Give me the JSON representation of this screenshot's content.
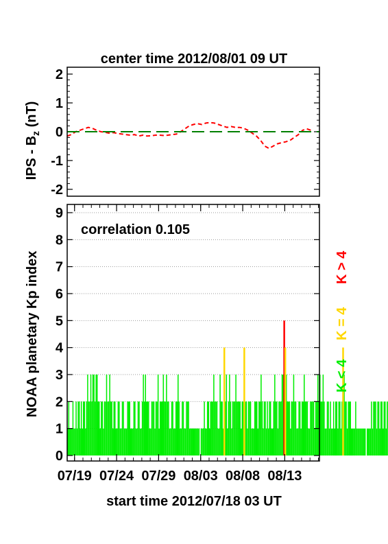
{
  "title": "center time 2012/08/01 09 UT",
  "xlabel": "start time 2012/07/18 03 UT",
  "chart_data": [
    {
      "type": "line",
      "ylabel_main": "IPS - B",
      "ylabel_sub": "z",
      "ylabel_unit": " (nT)",
      "ylim": [
        -2,
        2
      ],
      "yticks": [
        "2",
        "1",
        "0",
        "-1",
        "-2"
      ],
      "xlim_days": [
        0,
        30
      ],
      "grid": false,
      "series": [
        {
          "color": "#ff0000",
          "style": "dashed",
          "x_days": [
            0,
            0.5,
            1,
            1.5,
            2,
            2.5,
            3,
            3.5,
            4,
            4.5,
            5,
            5.5,
            6,
            6.5,
            7,
            7.5,
            8,
            8.5,
            9,
            9.5,
            10,
            10.5,
            11,
            11.5,
            12,
            12.5,
            13,
            13.5,
            14,
            14.5,
            15,
            15.5,
            16,
            16.5,
            17,
            17.5,
            18,
            18.5,
            19,
            19.5,
            20,
            20.5,
            21,
            21.5,
            22,
            22.5,
            23,
            23.5,
            24,
            24.5,
            25,
            25.5,
            26,
            26.5,
            27,
            27.5,
            28,
            28.5,
            29
          ],
          "values": [
            -0.15,
            -0.1,
            0.0,
            0.05,
            0.1,
            0.15,
            0.12,
            0.05,
            0.0,
            -0.02,
            -0.05,
            -0.03,
            -0.06,
            -0.08,
            -0.1,
            -0.12,
            -0.1,
            -0.15,
            -0.12,
            -0.15,
            -0.14,
            -0.12,
            -0.12,
            -0.13,
            -0.12,
            -0.1,
            -0.08,
            0.0,
            0.1,
            0.2,
            0.25,
            0.28,
            0.25,
            0.3,
            0.32,
            0.3,
            0.25,
            0.2,
            0.15,
            0.18,
            0.15,
            0.15,
            0.12,
            0.05,
            -0.05,
            -0.15,
            -0.3,
            -0.5,
            -0.58,
            -0.5,
            -0.42,
            -0.38,
            -0.35,
            -0.3,
            -0.2,
            -0.1,
            0.05,
            0.1,
            0.05
          ]
        },
        {
          "color": "#008000",
          "style": "long-dash",
          "x_days": [
            0,
            30
          ],
          "values": [
            0,
            0
          ]
        }
      ]
    },
    {
      "type": "bar",
      "annotation": "correlation 0.105",
      "ylabel": "NOAA planetary Kp index",
      "ylim": [
        0,
        9
      ],
      "yticks": [
        "0",
        "1",
        "2",
        "3",
        "4",
        "5",
        "6",
        "7",
        "8",
        "9"
      ],
      "grid": true,
      "xlim_days": [
        0,
        30
      ],
      "xtick_labels": [
        "07/19",
        "07/24",
        "07/29",
        "08/03",
        "08/08",
        "08/13"
      ],
      "xtick_days": [
        0.875,
        5.875,
        10.875,
        15.875,
        20.875,
        25.875
      ],
      "legend": [
        {
          "label": "K < 4",
          "color": "#00ee00"
        },
        {
          "label": "K = 4",
          "color": "#ffd700"
        },
        {
          "label": "K > 4",
          "color": "#ff0000"
        }
      ],
      "threshold_colors": {
        "low": "#00ee00",
        "equal": "#ffd700",
        "high": "#ff0000"
      },
      "interval_days": 0.125,
      "values": [
        1,
        2,
        1,
        1,
        1,
        2,
        1,
        1,
        2,
        1,
        2,
        2,
        1,
        2,
        1,
        2,
        2,
        1,
        2,
        3,
        2,
        2,
        3,
        2,
        3,
        3,
        2,
        3,
        3,
        2,
        2,
        1,
        2,
        2,
        1,
        2,
        2,
        3,
        2,
        2,
        3,
        2,
        2,
        1,
        2,
        2,
        1,
        1,
        2,
        2,
        1,
        1,
        2,
        2,
        1,
        1,
        1,
        2,
        2,
        2,
        1,
        1,
        1,
        2,
        2,
        1,
        1,
        2,
        2,
        1,
        1,
        2,
        3,
        2,
        3,
        2,
        2,
        2,
        1,
        1,
        2,
        2,
        2,
        1,
        2,
        2,
        3,
        1,
        2,
        2,
        2,
        3,
        2,
        2,
        3,
        2,
        2,
        1,
        1,
        2,
        2,
        1,
        1,
        2,
        2,
        3,
        2,
        1,
        1,
        2,
        2,
        1,
        1,
        2,
        2,
        2,
        1,
        1,
        1,
        1,
        1,
        1,
        1,
        1,
        1,
        1,
        0,
        1,
        1,
        1,
        2,
        1,
        1,
        2,
        2,
        1,
        2,
        2,
        2,
        3,
        2,
        2,
        2,
        1,
        1,
        3,
        2,
        2,
        1,
        4,
        2,
        3,
        1,
        2,
        3,
        2,
        1,
        2,
        2,
        2,
        3,
        2,
        2,
        2,
        2,
        1,
        2,
        2,
        4,
        2,
        2,
        1,
        2,
        2,
        2,
        1,
        1,
        1,
        2,
        2,
        2,
        1,
        2,
        2,
        3,
        2,
        1,
        2,
        2,
        1,
        2,
        1,
        2,
        2,
        1,
        1,
        2,
        3,
        2,
        2,
        1,
        2,
        2,
        2,
        3,
        3,
        5,
        4,
        3,
        2,
        2,
        2,
        1,
        2,
        2,
        3,
        2,
        2,
        1,
        1,
        2,
        2,
        1,
        2,
        2,
        3,
        2,
        2,
        2,
        1,
        1,
        2,
        2,
        2,
        2,
        1,
        2,
        2,
        3,
        2,
        3,
        2,
        2,
        3,
        2,
        1,
        1,
        2,
        2,
        1,
        2,
        1,
        1,
        2,
        1,
        2,
        2,
        1,
        2,
        2,
        1,
        2,
        4,
        3,
        2,
        2,
        1,
        2,
        2,
        2,
        1,
        1,
        1,
        1,
        2,
        1,
        1,
        1,
        1,
        1,
        1,
        1,
        1,
        1,
        0,
        1,
        1,
        1,
        1,
        2,
        1,
        2,
        2,
        2,
        1,
        2,
        2,
        1,
        2,
        2,
        1,
        2,
        2,
        1,
        2,
        2,
        1,
        1,
        2,
        2,
        2,
        1,
        2,
        2,
        1,
        2,
        2,
        1,
        2,
        3,
        2,
        2,
        1,
        2,
        3,
        2,
        2,
        1,
        2,
        2,
        1,
        1,
        2,
        2,
        1,
        2,
        1,
        2,
        2,
        2,
        1,
        1,
        1,
        2,
        2,
        2,
        1,
        2,
        1,
        1,
        2,
        1,
        2,
        1,
        2,
        2,
        1,
        1,
        2,
        1,
        2,
        2,
        1,
        1,
        2,
        1,
        1,
        2,
        2,
        1,
        2,
        1,
        2,
        2,
        1,
        1,
        2,
        1,
        1,
        2,
        2,
        1,
        1,
        2,
        1,
        1,
        2,
        2,
        1,
        1,
        2,
        2,
        1,
        1,
        2,
        1,
        2,
        2,
        2,
        1,
        1,
        2,
        2,
        1,
        2,
        2,
        1,
        1,
        2,
        1,
        1,
        1,
        1,
        1,
        1,
        1,
        1,
        1,
        1,
        2,
        1,
        1,
        2,
        2,
        1,
        2,
        2,
        1,
        2,
        2,
        1,
        2,
        2,
        1,
        2,
        2,
        2,
        1,
        2,
        2,
        3,
        2,
        2,
        1,
        2,
        3,
        2,
        2,
        2,
        3,
        2,
        2,
        1,
        2,
        3,
        2,
        1,
        2,
        2,
        1,
        1,
        2,
        2,
        1,
        1,
        2,
        2,
        1,
        1,
        2,
        2,
        1,
        1,
        1
      ]
    }
  ]
}
